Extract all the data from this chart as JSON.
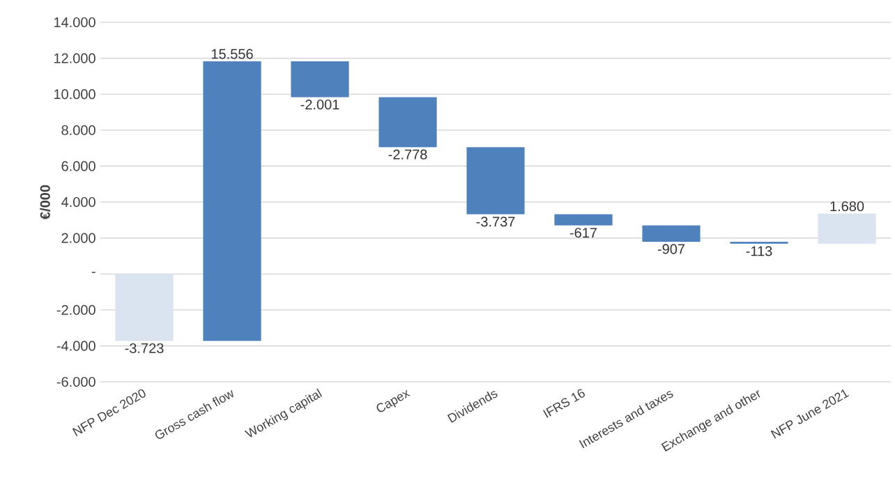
{
  "chart_data": {
    "type": "bar",
    "ylabel": "€/000",
    "categories": [
      "NFP Dec 2020",
      "Gross cash flow",
      "Working capital",
      "Capex",
      "Dividends",
      "IFRS 16",
      "Interests and taxes",
      "Exchange and other",
      "NFP June 2021"
    ],
    "values": [
      -3723,
      15556,
      -2001,
      -2778,
      -3737,
      -617,
      -907,
      -113,
      1680
    ],
    "base": [
      0,
      -3723,
      11833,
      9832,
      7054,
      3317,
      2700,
      1793,
      1680
    ],
    "value_labels": [
      "-3.723",
      "15.556",
      "-2.001",
      "-2.778",
      "-3.737",
      "-617",
      "-907",
      "-113",
      "1.680"
    ],
    "colors": [
      "#dae3f0",
      "#4f81bd",
      "#4f81bd",
      "#4f81bd",
      "#4f81bd",
      "#4f81bd",
      "#4f81bd",
      "#4f81bd",
      "#dae3f0"
    ],
    "ylim": [
      -6000,
      14000
    ],
    "yticks": [
      {
        "value": -6000,
        "label": "-6.000"
      },
      {
        "value": -4000,
        "label": "-4.000"
      },
      {
        "value": -2000,
        "label": "-2.000"
      },
      {
        "value": 0,
        "label": "-"
      },
      {
        "value": 2000,
        "label": "2.000"
      },
      {
        "value": 4000,
        "label": "4.000"
      },
      {
        "value": 6000,
        "label": "6.000"
      },
      {
        "value": 8000,
        "label": "8.000"
      },
      {
        "value": 10000,
        "label": "10.000"
      },
      {
        "value": 12000,
        "label": "12.000"
      },
      {
        "value": 14000,
        "label": "14.000"
      }
    ],
    "grid": "y"
  }
}
